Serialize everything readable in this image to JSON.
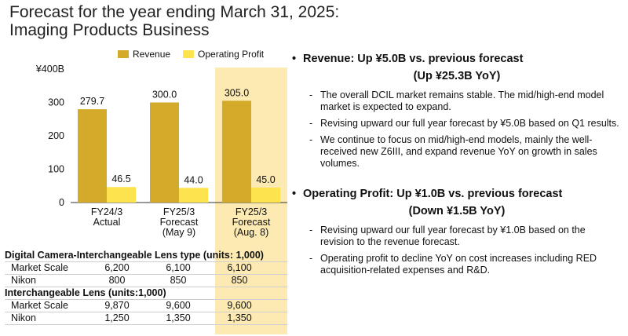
{
  "title": {
    "line1": "Forecast for the year ending March 31, 2025:",
    "line2": "Imaging Products Business"
  },
  "chart_data": {
    "type": "bar",
    "categories": [
      [
        "FY24/3",
        "Actual"
      ],
      [
        "FY25/3",
        "Forecast",
        "(May 9)"
      ],
      [
        "FY25/3",
        "Forecast",
        "(Aug. 8)"
      ]
    ],
    "series": [
      {
        "name": "Revenue",
        "values": [
          279.7,
          300.0,
          305.0
        ],
        "labels": [
          "279.7",
          "300.0",
          "305.0"
        ],
        "color": "#d4aa2a"
      },
      {
        "name": "Operating Profit",
        "values": [
          46.5,
          44.0,
          45.0
        ],
        "labels": [
          "46.5",
          "44.0",
          "45.0"
        ],
        "color": "#fde34e"
      }
    ],
    "yticks": [
      "¥400B",
      "300",
      "200",
      "100",
      "0"
    ],
    "ytick_values": [
      400,
      300,
      200,
      100,
      0
    ],
    "ylim": [
      0,
      400
    ],
    "highlight_category": 2,
    "highlight_color": "#fdeab2",
    "legend_position": "top"
  },
  "tables": [
    {
      "title": "Digital Camera-Interchangeable Lens type (units: 1,000)",
      "rows": [
        {
          "label": "Market Scale",
          "values": [
            "6,200",
            "6,100",
            "6,100"
          ]
        },
        {
          "label": "Nikon",
          "values": [
            "800",
            "850",
            "850"
          ]
        }
      ]
    },
    {
      "title": "Interchangeable Lens (units:1,000)",
      "rows": [
        {
          "label": "Market Scale",
          "values": [
            "9,870",
            "9,600",
            "9,600"
          ]
        },
        {
          "label": "Nikon",
          "values": [
            "1,250",
            "1,350",
            "1,350"
          ]
        }
      ]
    }
  ],
  "revenue": {
    "bullet": "•",
    "heading": "Revenue: Up ¥5.0B vs. previous forecast",
    "subheading": "(Up ¥25.3B YoY)",
    "notes": [
      "The overall DCIL market remains stable. The mid/high-end model market is expected to expand.",
      "Revising upward our full year forecast by ¥5.0B based on Q1 results.",
      "We continue to focus on mid/high-end models, mainly the well-received new Z6III, and expand revenue YoY on growth in sales volumes."
    ]
  },
  "profit": {
    "bullet": "•",
    "heading": "Operating Profit: Up ¥1.0B vs. previous forecast",
    "subheading": "(Down ¥1.5B YoY)",
    "notes": [
      "Revising upward our full year forecast by ¥1.0B based on the revision to the revenue forecast.",
      "Operating profit to decline YoY on cost increases including RED acquisition-related expenses and R&D."
    ]
  }
}
